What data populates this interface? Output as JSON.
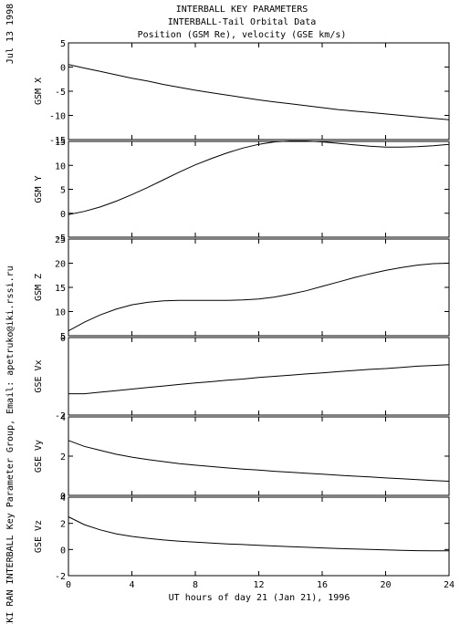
{
  "header": {
    "date": "Jul 13 1998",
    "title_line1": "INTERBALL KEY PARAMETERS",
    "title_line2": "INTERBALL-Tail Orbital Data",
    "title_line3": "Position (GSM Re), velocity (GSE km/s)"
  },
  "side_label": "IKI RAN INTERBALL Key Parameter Group, Email: apetruko@iki.rssi.ru",
  "chart_data": {
    "type": "line",
    "xlabel": "UT hours of day  21 (Jan 21), 1996",
    "xlim": [
      0,
      24
    ],
    "xticks": [
      0,
      4,
      8,
      12,
      16,
      20,
      24
    ],
    "x": [
      0,
      1,
      2,
      3,
      4,
      5,
      6,
      7,
      8,
      9,
      10,
      11,
      12,
      13,
      14,
      15,
      16,
      17,
      18,
      19,
      20,
      21,
      22,
      23,
      24
    ],
    "panels": [
      {
        "ylabel": "GSM X",
        "ylim": [
          -15,
          5
        ],
        "yticks": [
          5,
          0,
          -5,
          -10,
          -15
        ],
        "values": [
          0.5,
          -0.2,
          -0.9,
          -1.6,
          -2.3,
          -2.9,
          -3.6,
          -4.2,
          -4.8,
          -5.3,
          -5.8,
          -6.3,
          -6.8,
          -7.2,
          -7.6,
          -8.0,
          -8.4,
          -8.8,
          -9.1,
          -9.4,
          -9.7,
          -10.0,
          -10.3,
          -10.6,
          -10.9
        ]
      },
      {
        "ylabel": "GSM Y",
        "ylim": [
          -5,
          15
        ],
        "yticks": [
          15,
          10,
          5,
          0,
          -5
        ],
        "values": [
          -0.3,
          0.4,
          1.3,
          2.5,
          3.9,
          5.4,
          7.0,
          8.6,
          10.1,
          11.4,
          12.6,
          13.6,
          14.4,
          14.9,
          15.1,
          15.1,
          14.9,
          14.6,
          14.3,
          14.0,
          13.8,
          13.8,
          13.9,
          14.1,
          14.4
        ]
      },
      {
        "ylabel": "GSM Z",
        "ylim": [
          5,
          25
        ],
        "yticks": [
          25,
          20,
          15,
          10,
          5
        ],
        "values": [
          6.0,
          7.8,
          9.3,
          10.5,
          11.4,
          11.9,
          12.2,
          12.3,
          12.3,
          12.3,
          12.3,
          12.4,
          12.6,
          13.0,
          13.6,
          14.3,
          15.2,
          16.1,
          17.0,
          17.8,
          18.5,
          19.1,
          19.6,
          19.9,
          20.0
        ]
      },
      {
        "ylabel": "GSE Vx",
        "ylim": [
          -2,
          0
        ],
        "yticks": [
          0,
          -2
        ],
        "values": [
          -1.45,
          -1.45,
          -1.41,
          -1.37,
          -1.33,
          -1.29,
          -1.25,
          -1.21,
          -1.17,
          -1.14,
          -1.1,
          -1.07,
          -1.03,
          -1.0,
          -0.97,
          -0.94,
          -0.91,
          -0.88,
          -0.85,
          -0.82,
          -0.8,
          -0.77,
          -0.74,
          -0.72,
          -0.7
        ]
      },
      {
        "ylabel": "GSE Vy",
        "ylim": [
          0,
          4
        ],
        "yticks": [
          4,
          2,
          0
        ],
        "values": [
          2.8,
          2.5,
          2.3,
          2.1,
          1.95,
          1.83,
          1.72,
          1.62,
          1.54,
          1.47,
          1.4,
          1.34,
          1.29,
          1.23,
          1.18,
          1.13,
          1.08,
          1.03,
          0.98,
          0.94,
          0.89,
          0.85,
          0.8,
          0.76,
          0.72
        ]
      },
      {
        "ylabel": "GSE Vz",
        "ylim": [
          -2,
          4
        ],
        "yticks": [
          4,
          2,
          0,
          -2
        ],
        "values": [
          2.5,
          1.9,
          1.5,
          1.2,
          1.0,
          0.85,
          0.73,
          0.64,
          0.56,
          0.49,
          0.43,
          0.38,
          0.32,
          0.27,
          0.22,
          0.17,
          0.12,
          0.08,
          0.04,
          0.0,
          -0.03,
          -0.06,
          -0.09,
          -0.1,
          -0.1
        ]
      }
    ]
  }
}
